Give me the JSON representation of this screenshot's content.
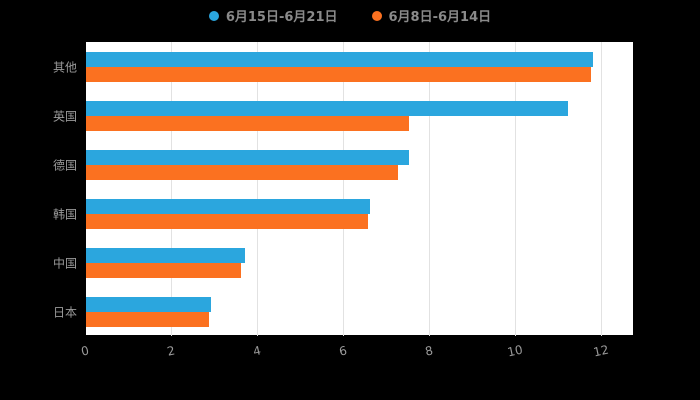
{
  "chart_data": {
    "type": "bar",
    "orientation": "horizontal",
    "title": "",
    "categories": [
      "其他",
      "英国",
      "德国",
      "韩国",
      "中国",
      "日本"
    ],
    "series": [
      {
        "name": "6月15日-6月21日",
        "color": "#2BA6DE",
        "values": [
          11.8,
          11.2,
          7.5,
          6.6,
          3.7,
          2.9
        ]
      },
      {
        "name": "6月8日-6月14日",
        "color": "#FB7120",
        "values": [
          11.75,
          7.5,
          7.25,
          6.55,
          3.6,
          2.85
        ]
      }
    ],
    "xlabel": "",
    "ylabel": "",
    "xlim": [
      0,
      12
    ],
    "xticks": [
      0,
      2,
      4,
      6,
      8,
      10,
      12
    ],
    "grid": "vertical-on",
    "legend_position": "top-center",
    "plot_background": "#ffffff",
    "page_background": "#000000",
    "label_color": "#9a9a9a"
  }
}
